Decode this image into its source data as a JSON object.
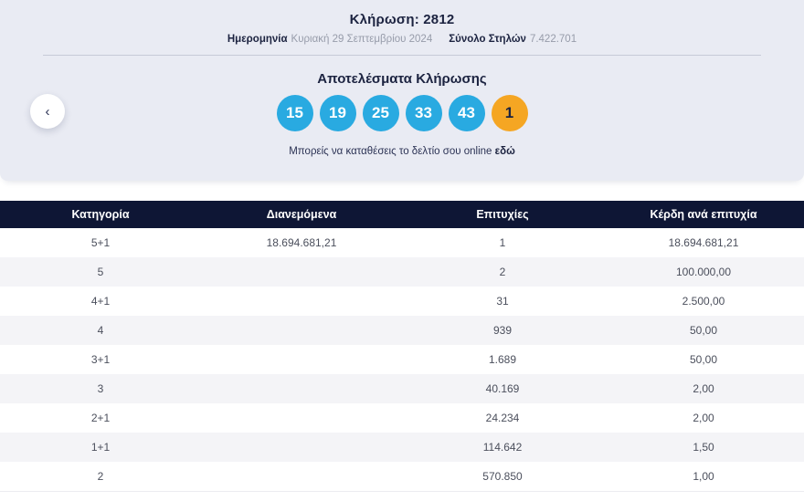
{
  "header": {
    "draw_title": "Κλήρωση: 2812",
    "date_label": "Ημερομηνία",
    "date_value": "Κυριακή 29 Σεπτεμβρίου 2024",
    "columns_label": "Σύνολο Στηλών",
    "columns_value": "7.422.701"
  },
  "results": {
    "title": "Αποτελέσματα Κλήρωσης",
    "numbers": [
      "15",
      "19",
      "25",
      "33",
      "43"
    ],
    "bonus": "1",
    "online_text": "Μπορείς να καταθέσεις το δελτίο σου online",
    "online_link_label": "εδώ"
  },
  "icons": {
    "chevron_left": "‹"
  },
  "colors": {
    "panel_bg": "#e9ebf3",
    "ball_blue": "#29aae1",
    "ball_orange": "#f5a623",
    "table_header_bg": "#0e1635",
    "dark_navy_text": "#1c2340",
    "alt_row_bg": "#f4f4f7"
  },
  "table": {
    "headers": [
      "Κατηγορία",
      "Διανεμόμενα",
      "Επιτυχίες",
      "Κέρδη ανά επιτυχία"
    ],
    "rows": [
      {
        "category": "5+1",
        "distributed": "18.694.681,21",
        "winners": "1",
        "prize": "18.694.681,21"
      },
      {
        "category": "5",
        "distributed": "",
        "winners": "2",
        "prize": "100.000,00"
      },
      {
        "category": "4+1",
        "distributed": "",
        "winners": "31",
        "prize": "2.500,00"
      },
      {
        "category": "4",
        "distributed": "",
        "winners": "939",
        "prize": "50,00"
      },
      {
        "category": "3+1",
        "distributed": "",
        "winners": "1.689",
        "prize": "50,00"
      },
      {
        "category": "3",
        "distributed": "",
        "winners": "40.169",
        "prize": "2,00"
      },
      {
        "category": "2+1",
        "distributed": "",
        "winners": "24.234",
        "prize": "2,00"
      },
      {
        "category": "1+1",
        "distributed": "",
        "winners": "114.642",
        "prize": "1,50"
      },
      {
        "category": "2",
        "distributed": "",
        "winners": "570.850",
        "prize": "1,00"
      }
    ]
  }
}
